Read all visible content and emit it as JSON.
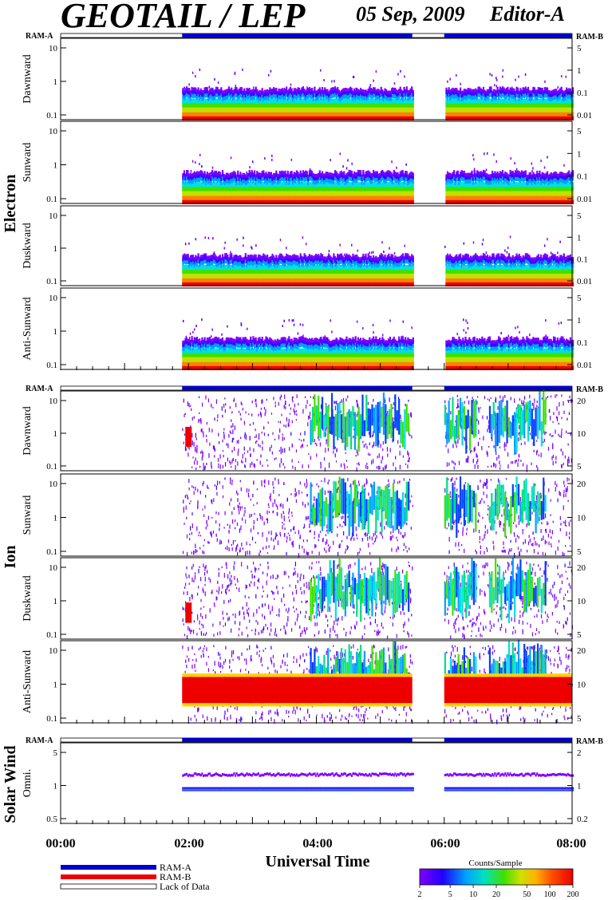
{
  "header": {
    "title": "GEOTAIL / LEP",
    "date": "05 Sep, 2009",
    "editor": "Editor-A"
  },
  "ram_labels": {
    "left": "RAM-A",
    "right": "RAM-B"
  },
  "groups": {
    "electron": "Electron",
    "ion": "Ion",
    "solar_wind": "Solar Wind"
  },
  "x_axis": {
    "title": "Universal Time",
    "ticks": [
      "00:00",
      "02:00",
      "04:00",
      "06:00",
      "08:00"
    ],
    "range_hours": [
      0,
      8
    ]
  },
  "legend": {
    "ram_a": "RAM-A",
    "ram_b": "RAM-B",
    "lack": "Lack of Data"
  },
  "colorbar": {
    "title": "Counts/Sample",
    "ticks": [
      "2",
      "5",
      "10",
      "20",
      "50",
      "100",
      "200"
    ]
  },
  "colors": {
    "ram_a": "#0000cc",
    "ram_b": "#ee0000",
    "palette": [
      "#8000ff",
      "#4000ff",
      "#0040ff",
      "#00a0ff",
      "#00e0e0",
      "#00e080",
      "#40e000",
      "#c0e000",
      "#ffd000",
      "#ff8000",
      "#ff2000",
      "#ee0000"
    ]
  },
  "chart_data": {
    "type": "heatmap",
    "data_gap_hours": [
      5.5,
      6.0
    ],
    "coverage_start_hours": 1.9,
    "ram_a_intervals_hours": [
      [
        1.9,
        5.5
      ],
      [
        6.0,
        8.0
      ]
    ],
    "panels": [
      {
        "group": "electron",
        "label": "Dawnward",
        "left_ticks": [
          "0.1",
          "1",
          "10"
        ],
        "right_ticks": [
          "0.01",
          "0.1",
          "1",
          "5"
        ]
      },
      {
        "group": "electron",
        "label": "Sunward",
        "left_ticks": [
          "0.1",
          "1",
          "10"
        ],
        "right_ticks": [
          "0.01",
          "0.1",
          "1",
          "5"
        ]
      },
      {
        "group": "electron",
        "label": "Duskward",
        "left_ticks": [
          "0.1",
          "1",
          "10"
        ],
        "right_ticks": [
          "0.01",
          "0.1",
          "1",
          "5"
        ]
      },
      {
        "group": "electron",
        "label": "Anti-Sunward",
        "left_ticks": [
          "0.1",
          "1",
          "10"
        ],
        "right_ticks": [
          "0.01",
          "0.1",
          "1",
          "5"
        ]
      },
      {
        "group": "ion",
        "label": "Dawnward",
        "left_ticks": [
          "0.1",
          "1",
          "10"
        ],
        "right_ticks": [
          "5",
          "10",
          "20"
        ]
      },
      {
        "group": "ion",
        "label": "Sunward",
        "left_ticks": [
          "0.1",
          "1",
          "10"
        ],
        "right_ticks": [
          "5",
          "10",
          "20"
        ]
      },
      {
        "group": "ion",
        "label": "Duskward",
        "left_ticks": [
          "0.1",
          "1",
          "10"
        ],
        "right_ticks": [
          "5",
          "10",
          "20"
        ]
      },
      {
        "group": "ion",
        "label": "Anti-Sunward",
        "left_ticks": [
          "0.1",
          "1",
          "10"
        ],
        "right_ticks": [
          "5",
          "10",
          "20"
        ]
      },
      {
        "group": "solar_wind",
        "label": "Omni.",
        "left_ticks": [
          "0.5",
          "1",
          "5"
        ],
        "right_ticks": [
          "0.2",
          "1",
          "2"
        ]
      }
    ]
  }
}
